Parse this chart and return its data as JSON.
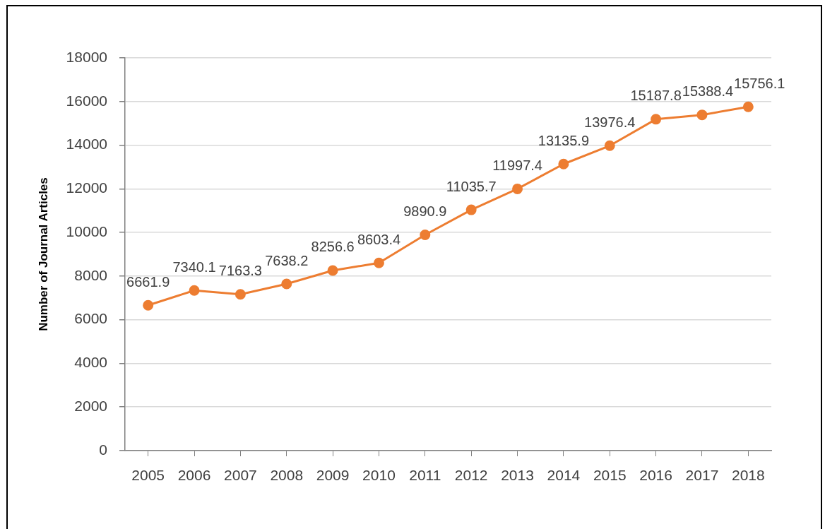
{
  "chart_data": {
    "type": "line",
    "ylabel": "Number of Journal Articles",
    "categories": [
      "2005",
      "2006",
      "2007",
      "2008",
      "2009",
      "2010",
      "2011",
      "2012",
      "2013",
      "2014",
      "2015",
      "2016",
      "2017",
      "2018"
    ],
    "series": [
      {
        "color": "#ed7d31",
        "values": [
          6661.9,
          7340.1,
          7163.3,
          7638.2,
          8256.6,
          8603.4,
          9890.9,
          11035.7,
          11997.4,
          13135.9,
          13976.4,
          15187.8,
          15388.4,
          15756.1
        ]
      }
    ],
    "ylim": [
      0,
      18000
    ],
    "yticks": [
      0,
      2000,
      4000,
      6000,
      8000,
      10000,
      12000,
      14000,
      16000,
      18000
    ],
    "grid": "y",
    "marker": "circle",
    "data_labels": true
  }
}
